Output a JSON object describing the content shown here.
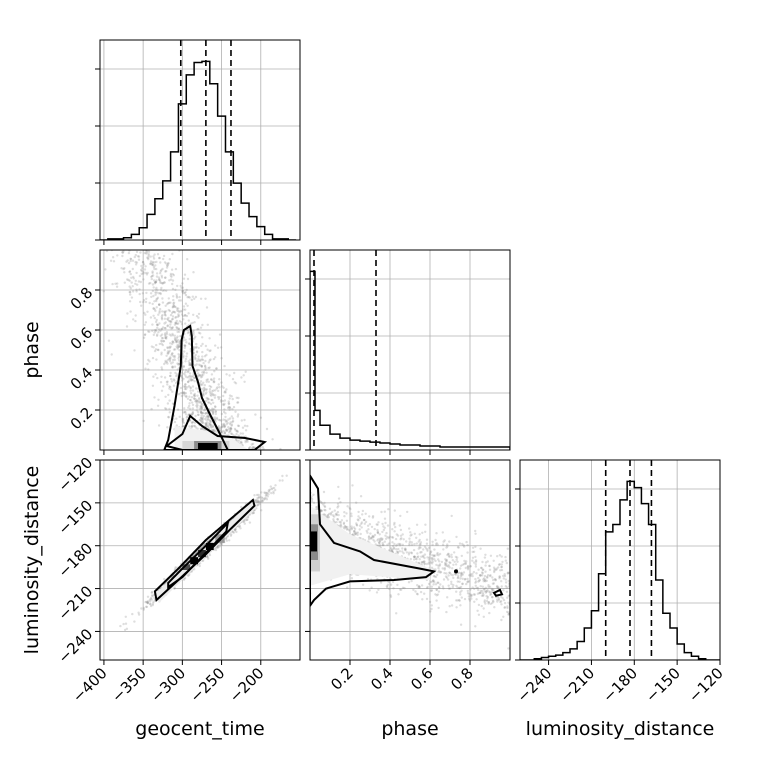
{
  "chart_data": {
    "type": "scatter",
    "subtype": "corner-plot",
    "grid": true,
    "parameters": [
      "geocent_time",
      "phase",
      "luminosity_distance"
    ],
    "axes": {
      "geocent_time": {
        "label": "geocent_time",
        "range": [
          -405,
          -150
        ],
        "ticks": [
          -400,
          -350,
          -300,
          -250,
          -200
        ],
        "tick_labels": [
          "−400",
          "−350",
          "−300",
          "−250",
          "−200"
        ]
      },
      "phase": {
        "label": "phase",
        "range": [
          0,
          1
        ],
        "ticks": [
          0.2,
          0.4,
          0.6,
          0.8
        ],
        "tick_labels": [
          "0.2",
          "0.4",
          "0.6",
          "0.8"
        ]
      },
      "luminosity_distance": {
        "label": "luminosity_distance",
        "range": [
          -260,
          -120
        ],
        "ticks": [
          -240,
          -210,
          -180,
          -150,
          -120
        ],
        "tick_labels": [
          "−240",
          "−210",
          "−180",
          "−150",
          "−120"
        ]
      }
    },
    "histograms": {
      "geocent_time": {
        "edges": [
          -405,
          -395,
          -385,
          -375,
          -365,
          -355,
          -345,
          -335,
          -325,
          -315,
          -305,
          -295,
          -285,
          -275,
          -265,
          -255,
          -245,
          -235,
          -225,
          -215,
          -205,
          -195,
          -185,
          -175,
          -165,
          -155
        ],
        "counts": [
          0,
          1,
          1,
          2,
          5,
          11,
          23,
          37,
          53,
          79,
          122,
          148,
          159,
          160,
          140,
          111,
          79,
          51,
          33,
          21,
          12,
          5,
          1,
          1,
          0
        ],
        "quantiles": [
          -302,
          -270,
          -238
        ]
      },
      "phase": {
        "edges": [
          0.0,
          0.025,
          0.05,
          0.1,
          0.15,
          0.2,
          0.25,
          0.3,
          0.35,
          0.4,
          0.45,
          0.5,
          0.55,
          0.6,
          0.65,
          0.7,
          0.75,
          0.8,
          0.85,
          0.9,
          0.95,
          1.0
        ],
        "counts": [
          180,
          40,
          25,
          16,
          12,
          10,
          9,
          8,
          7,
          6,
          5,
          5,
          4,
          4,
          3,
          3,
          3,
          3,
          3,
          3,
          3
        ],
        "quantiles": [
          0.02,
          0.33
        ]
      },
      "luminosity_distance": {
        "edges": [
          -260,
          -255,
          -250,
          -245,
          -240,
          -235,
          -230,
          -225,
          -220,
          -215,
          -210,
          -205,
          -200,
          -195,
          -190,
          -185,
          -180,
          -175,
          -170,
          -165,
          -160,
          -155,
          -150,
          -145,
          -140,
          -135,
          -130,
          -125,
          -120
        ],
        "counts": [
          0,
          0,
          1,
          2,
          3,
          4,
          6,
          9,
          15,
          26,
          40,
          70,
          104,
          110,
          130,
          145,
          140,
          127,
          110,
          65,
          38,
          26,
          13,
          6,
          3,
          1,
          0,
          0
        ],
        "quantiles": [
          -200,
          -183,
          -168
        ]
      }
    },
    "scatter_2d": {
      "phase_vs_geocent_time": {
        "correlation": "phase decreases as geocent_time increases",
        "x_center": -270,
        "y_mode": 0.02
      },
      "luminosity_distance_vs_geocent_time": {
        "correlation": "strong positive linear",
        "x_center": -270,
        "y_center": -183
      },
      "luminosity_distance_vs_phase": {
        "correlation": "weak negative",
        "x_mode": 0.02,
        "y_center": -178
      }
    }
  }
}
